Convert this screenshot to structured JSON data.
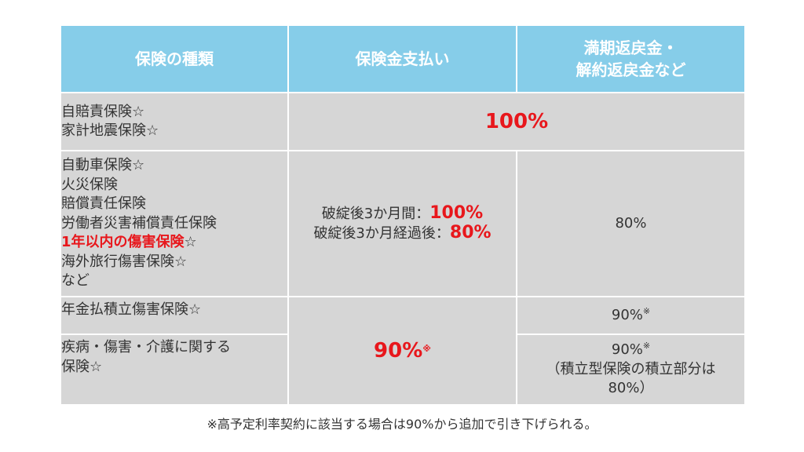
{
  "header": {
    "col1": "保険の種類",
    "col2": "保険金支払い",
    "col3_line1": "満期返戻金・",
    "col3_line2": "解約返戻金など"
  },
  "rows": [
    {
      "types": [
        "自賠責保険☆",
        "家計地震保険☆"
      ],
      "payout_merged": "100%"
    },
    {
      "types": [
        "自動車保険☆",
        "火災保険",
        "賠償責任保険",
        "労働者災害補償責任保険"
      ],
      "highlight_type": "1年以内の傷害保険",
      "highlight_suffix": "☆",
      "types_after": [
        "海外旅行傷害保険☆",
        "など"
      ],
      "payout_line1_label": "破綻後3か月間：",
      "payout_line1_value": "100%",
      "payout_line2_label": "破綻後3か月経過後：",
      "payout_line2_value": "80%",
      "refund": "80%"
    },
    {
      "type": "年金払積立傷害保険☆",
      "refund": "90%",
      "refund_mark": "※"
    },
    {
      "type_line1": "疾病・傷害・介護に関する",
      "type_line2": "保険☆",
      "refund": "90%",
      "refund_mark": "※",
      "refund_note_line1": "（積立型保険の積立部分は",
      "refund_note_line2": "80%）"
    }
  ],
  "payout_shared": "90%",
  "payout_shared_mark": "※",
  "footnote": "※高予定利率契約に該当する場合は90%から追加で引き下げられる。",
  "colors": {
    "header_bg": "#86cde9",
    "cell_bg": "#d6d6d6",
    "accent_red": "#e8171c",
    "text": "#333333"
  }
}
